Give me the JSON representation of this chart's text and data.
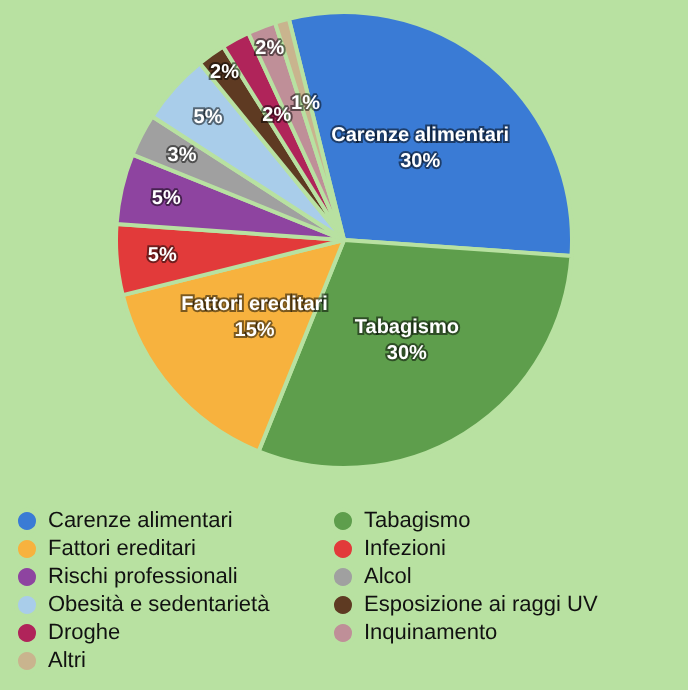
{
  "chart_data": {
    "type": "pie",
    "categories": [
      "Carenze alimentari",
      "Tabagismo",
      "Fattori ereditari",
      "Infezioni",
      "Rischi professionali",
      "Alcol",
      "Obesità e sedentarietà",
      "Esposizione ai raggi UV",
      "Droghe",
      "Inquinamento",
      "Altri"
    ],
    "values": [
      30,
      30,
      15,
      5,
      5,
      3,
      5,
      2,
      2,
      2,
      1
    ],
    "value_labels": [
      "30%",
      "30%",
      "15%",
      "5%",
      "5%",
      "3%",
      "5%",
      "2%",
      "2%",
      "2%",
      "1%"
    ],
    "colors": [
      "#3a7bd5",
      "#5e9e4c",
      "#f7b23e",
      "#e23a3a",
      "#8e44a0",
      "#a0a0a0",
      "#a9cdea",
      "#5e3a22",
      "#b0245a",
      "#bf8f98",
      "#c9b48e"
    ],
    "legend": "bottom"
  }
}
